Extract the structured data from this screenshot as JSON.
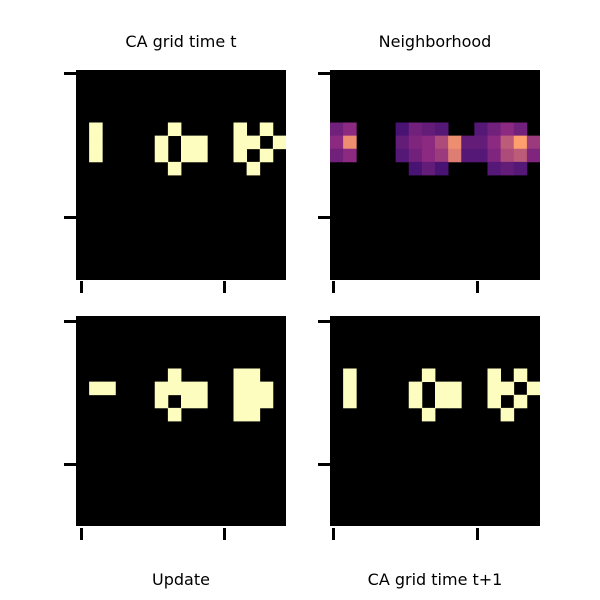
{
  "panels": [
    {
      "id": "ca-grid-t",
      "title": "CA grid time t",
      "colormap": "binary",
      "cells": [
        {
          "c": 1,
          "r": 4,
          "v": 1
        },
        {
          "c": 1,
          "r": 5,
          "v": 1
        },
        {
          "c": 1,
          "r": 6,
          "v": 1
        },
        {
          "c": 7,
          "r": 4,
          "v": 1
        },
        {
          "c": 6,
          "r": 5,
          "v": 1
        },
        {
          "c": 8,
          "r": 5,
          "v": 1
        },
        {
          "c": 6,
          "r": 6,
          "v": 1
        },
        {
          "c": 8,
          "r": 6,
          "v": 1
        },
        {
          "c": 7,
          "r": 7,
          "v": 1
        },
        {
          "c": 9,
          "r": 5,
          "v": 1
        },
        {
          "c": 9,
          "r": 6,
          "v": 1
        },
        {
          "c": 12,
          "r": 4,
          "v": 1
        },
        {
          "c": 12,
          "r": 5,
          "v": 1
        },
        {
          "c": 12,
          "r": 6,
          "v": 1
        },
        {
          "c": 13,
          "r": 5,
          "v": 1
        },
        {
          "c": 14,
          "r": 4,
          "v": 1
        },
        {
          "c": 14,
          "r": 6,
          "v": 1
        },
        {
          "c": 13,
          "r": 7,
          "v": 1
        },
        {
          "c": 15,
          "r": 5,
          "v": 1
        }
      ]
    },
    {
      "id": "neighborhood",
      "title": "Neighborhood",
      "colormap": "magma",
      "cells": [
        {
          "c": 0,
          "r": 4,
          "v": 0.45
        },
        {
          "c": 1,
          "r": 4,
          "v": 0.55
        },
        {
          "c": 0,
          "r": 5,
          "v": 0.55
        },
        {
          "c": 1,
          "r": 5,
          "v": 0.85
        },
        {
          "c": 0,
          "r": 6,
          "v": 0.45
        },
        {
          "c": 1,
          "r": 6,
          "v": 0.55
        },
        {
          "c": 5,
          "r": 4,
          "v": 0.3
        },
        {
          "c": 6,
          "r": 4,
          "v": 0.45
        },
        {
          "c": 7,
          "r": 4,
          "v": 0.4
        },
        {
          "c": 8,
          "r": 4,
          "v": 0.35
        },
        {
          "c": 5,
          "r": 5,
          "v": 0.4
        },
        {
          "c": 6,
          "r": 5,
          "v": 0.5
        },
        {
          "c": 7,
          "r": 5,
          "v": 0.55
        },
        {
          "c": 8,
          "r": 5,
          "v": 0.65
        },
        {
          "c": 9,
          "r": 5,
          "v": 0.85
        },
        {
          "c": 10,
          "r": 5,
          "v": 0.4
        },
        {
          "c": 5,
          "r": 6,
          "v": 0.35
        },
        {
          "c": 6,
          "r": 6,
          "v": 0.45
        },
        {
          "c": 7,
          "r": 6,
          "v": 0.55
        },
        {
          "c": 8,
          "r": 6,
          "v": 0.6
        },
        {
          "c": 9,
          "r": 6,
          "v": 0.8
        },
        {
          "c": 10,
          "r": 6,
          "v": 0.35
        },
        {
          "c": 6,
          "r": 7,
          "v": 0.3
        },
        {
          "c": 7,
          "r": 7,
          "v": 0.4
        },
        {
          "c": 8,
          "r": 7,
          "v": 0.3
        },
        {
          "c": 11,
          "r": 4,
          "v": 0.35
        },
        {
          "c": 12,
          "r": 4,
          "v": 0.45
        },
        {
          "c": 13,
          "r": 4,
          "v": 0.55
        },
        {
          "c": 14,
          "r": 4,
          "v": 0.45
        },
        {
          "c": 11,
          "r": 5,
          "v": 0.4
        },
        {
          "c": 12,
          "r": 5,
          "v": 0.55
        },
        {
          "c": 13,
          "r": 5,
          "v": 0.7
        },
        {
          "c": 14,
          "r": 5,
          "v": 0.9
        },
        {
          "c": 15,
          "r": 5,
          "v": 0.6
        },
        {
          "c": 11,
          "r": 6,
          "v": 0.35
        },
        {
          "c": 12,
          "r": 6,
          "v": 0.5
        },
        {
          "c": 13,
          "r": 6,
          "v": 0.65
        },
        {
          "c": 14,
          "r": 6,
          "v": 0.7
        },
        {
          "c": 15,
          "r": 6,
          "v": 0.5
        },
        {
          "c": 12,
          "r": 7,
          "v": 0.35
        },
        {
          "c": 13,
          "r": 7,
          "v": 0.4
        },
        {
          "c": 14,
          "r": 7,
          "v": 0.35
        }
      ]
    },
    {
      "id": "update",
      "title": "Update",
      "colormap": "binary",
      "cells": [
        {
          "c": 1,
          "r": 5,
          "v": 1
        },
        {
          "c": 2,
          "r": 5,
          "v": 1
        },
        {
          "c": 7,
          "r": 4,
          "v": 1
        },
        {
          "c": 6,
          "r": 5,
          "v": 1
        },
        {
          "c": 7,
          "r": 5,
          "v": 1
        },
        {
          "c": 8,
          "r": 5,
          "v": 1
        },
        {
          "c": 9,
          "r": 5,
          "v": 1
        },
        {
          "c": 6,
          "r": 6,
          "v": 1
        },
        {
          "c": 8,
          "r": 6,
          "v": 1
        },
        {
          "c": 9,
          "r": 6,
          "v": 1
        },
        {
          "c": 7,
          "r": 7,
          "v": 1
        },
        {
          "c": 12,
          "r": 4,
          "v": 1
        },
        {
          "c": 13,
          "r": 4,
          "v": 1
        },
        {
          "c": 12,
          "r": 5,
          "v": 1
        },
        {
          "c": 13,
          "r": 5,
          "v": 1
        },
        {
          "c": 14,
          "r": 5,
          "v": 1
        },
        {
          "c": 12,
          "r": 6,
          "v": 1
        },
        {
          "c": 13,
          "r": 6,
          "v": 1
        },
        {
          "c": 14,
          "r": 6,
          "v": 1
        },
        {
          "c": 12,
          "r": 7,
          "v": 1
        },
        {
          "c": 13,
          "r": 7,
          "v": 1
        }
      ]
    },
    {
      "id": "ca-grid-t1",
      "title": "CA grid time t+1",
      "colormap": "binary",
      "cells": [
        {
          "c": 1,
          "r": 4,
          "v": 1
        },
        {
          "c": 1,
          "r": 5,
          "v": 1
        },
        {
          "c": 1,
          "r": 6,
          "v": 1
        },
        {
          "c": 7,
          "r": 4,
          "v": 1
        },
        {
          "c": 6,
          "r": 5,
          "v": 1
        },
        {
          "c": 8,
          "r": 5,
          "v": 1
        },
        {
          "c": 6,
          "r": 6,
          "v": 1
        },
        {
          "c": 8,
          "r": 6,
          "v": 1
        },
        {
          "c": 7,
          "r": 7,
          "v": 1
        },
        {
          "c": 9,
          "r": 5,
          "v": 1
        },
        {
          "c": 9,
          "r": 6,
          "v": 1
        },
        {
          "c": 12,
          "r": 4,
          "v": 1
        },
        {
          "c": 12,
          "r": 5,
          "v": 1
        },
        {
          "c": 12,
          "r": 6,
          "v": 1
        },
        {
          "c": 13,
          "r": 5,
          "v": 1
        },
        {
          "c": 14,
          "r": 4,
          "v": 1
        },
        {
          "c": 14,
          "r": 6,
          "v": 1
        },
        {
          "c": 13,
          "r": 7,
          "v": 1
        },
        {
          "c": 15,
          "r": 5,
          "v": 1
        }
      ]
    }
  ],
  "colors": {
    "background": "#000000",
    "alive": "#fcfdbf",
    "magma_low": "#3b0f70",
    "magma_mid": "#8c2981",
    "magma_high": "#fe9f6d"
  },
  "grid_size": 16
}
